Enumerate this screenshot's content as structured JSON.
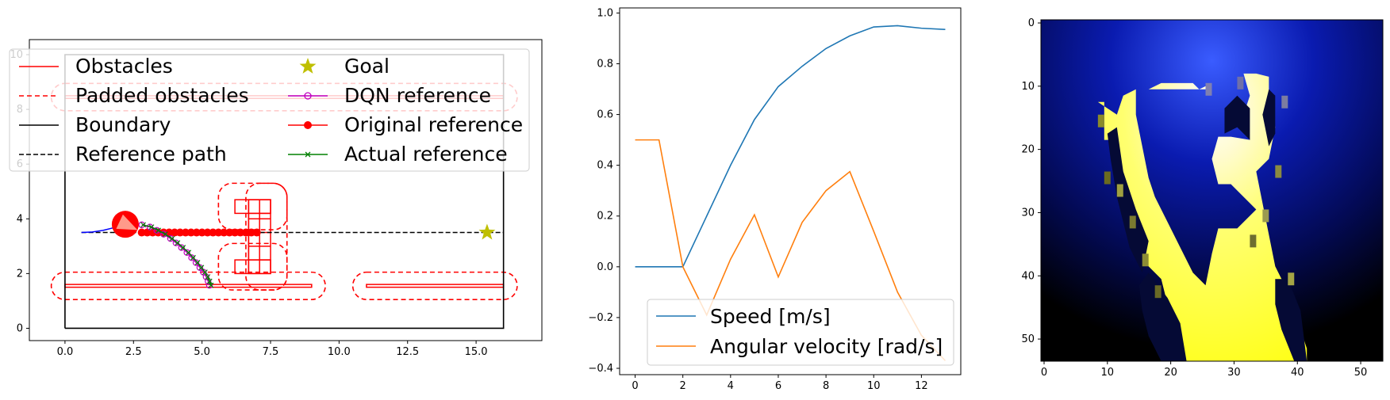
{
  "chart_data": [
    {
      "type": "scatter",
      "title": "",
      "xlabel": "",
      "ylabel": "",
      "xlim": [
        -1.3,
        17.4
      ],
      "ylim": [
        -0.45,
        10.55
      ],
      "xticks": [
        0.0,
        2.5,
        5.0,
        7.5,
        10.0,
        12.5,
        15.0
      ],
      "xtick_labels": [
        "0.0",
        "2.5",
        "5.0",
        "7.5",
        "10.0",
        "12.5",
        "15.0"
      ],
      "yticks": [
        0,
        2,
        4,
        6,
        8,
        10
      ],
      "ytick_labels": [
        "0",
        "2",
        "4",
        "6",
        "8",
        "10"
      ],
      "legend": {
        "placement": "top-left",
        "entries": [
          "Obstacles",
          "Padded obstacles",
          "Boundary",
          "Reference path",
          "Goal",
          "DQN reference",
          "Original reference",
          "Actual reference"
        ]
      },
      "boundary": [
        [
          0,
          0
        ],
        [
          16,
          0
        ],
        [
          16,
          10
        ],
        [
          0,
          10
        ],
        [
          0,
          0
        ]
      ],
      "obstacles": [
        [
          [
            0,
            1.5
          ],
          [
            9,
            1.5
          ],
          [
            9,
            1.6
          ],
          [
            0,
            1.6
          ]
        ],
        [
          [
            11,
            1.5
          ],
          [
            16,
            1.5
          ],
          [
            16,
            1.6
          ],
          [
            11,
            1.6
          ]
        ],
        [
          [
            0,
            8.4
          ],
          [
            16,
            8.4
          ],
          [
            16,
            8.5
          ],
          [
            0,
            8.5
          ]
        ],
        [
          [
            6.2,
            4.2
          ],
          [
            7.5,
            4.2
          ],
          [
            7.5,
            4.7
          ],
          [
            6.2,
            4.7
          ]
        ],
        [
          [
            6.2,
            2.0
          ],
          [
            7.5,
            2.0
          ],
          [
            7.5,
            2.5
          ],
          [
            6.2,
            2.5
          ]
        ],
        [
          [
            6.7,
            2.0
          ],
          [
            7.5,
            2.0
          ],
          [
            7.5,
            4.7
          ],
          [
            6.7,
            4.7
          ]
        ]
      ],
      "padded_obstacles": [
        {
          "x": [
            -0.5,
            9.5
          ],
          "y": [
            1.05,
            2.05
          ],
          "r": 0.5
        },
        {
          "x": [
            10.5,
            16.5
          ],
          "y": [
            1.05,
            2.05
          ],
          "r": 0.5
        },
        {
          "x": [
            -0.5,
            16.5
          ],
          "y": [
            7.95,
            8.95
          ],
          "r": 0.5
        },
        {
          "x": [
            5.6,
            8.1
          ],
          "y": [
            3.6,
            5.3
          ],
          "r": 0.5
        },
        {
          "x": [
            5.6,
            8.1
          ],
          "y": [
            1.4,
            3.1
          ],
          "r": 0.5
        },
        {
          "x": [
            6.6,
            8.1
          ],
          "y": [
            1.4,
            5.3
          ],
          "r": 0.5
        }
      ],
      "reference_path": {
        "x": [
          0.6,
          16.0
        ],
        "y": [
          3.5,
          3.5
        ]
      },
      "goal": {
        "x": 15.4,
        "y": 3.5
      },
      "robot": {
        "x": 2.2,
        "y": 3.8,
        "heading_deg": -25
      },
      "past_trajectory": {
        "x": [
          0.6,
          1.0,
          1.4,
          1.8,
          2.2
        ],
        "y": [
          3.5,
          3.52,
          3.58,
          3.68,
          3.8
        ]
      },
      "original_reference": {
        "x": [
          2.8,
          3.0,
          3.2,
          3.4,
          3.6,
          3.8,
          4.0,
          4.2,
          4.4,
          4.6,
          4.8,
          5.0,
          5.2,
          5.4,
          5.6,
          5.8,
          6.0,
          6.2,
          6.4,
          6.6,
          6.8,
          7.0
        ],
        "y": [
          3.5,
          3.5,
          3.5,
          3.5,
          3.5,
          3.5,
          3.5,
          3.5,
          3.5,
          3.5,
          3.5,
          3.5,
          3.5,
          3.5,
          3.5,
          3.5,
          3.5,
          3.5,
          3.5,
          3.5,
          3.5,
          3.5
        ]
      },
      "dqn_reference": {
        "x": [
          2.8,
          3.1,
          3.35,
          3.6,
          3.85,
          4.05,
          4.25,
          4.45,
          4.62,
          4.78,
          4.92,
          5.05,
          5.15,
          5.22,
          5.27
        ],
        "y": [
          3.78,
          3.7,
          3.58,
          3.44,
          3.28,
          3.12,
          2.95,
          2.77,
          2.58,
          2.4,
          2.22,
          2.05,
          1.88,
          1.72,
          1.57
        ]
      },
      "actual_reference": {
        "x": [
          2.8,
          3.1,
          3.35,
          3.6,
          3.85,
          4.05,
          4.25,
          4.45,
          4.62,
          4.78,
          4.92,
          5.05,
          5.15,
          5.22,
          5.27
        ],
        "y": [
          3.78,
          3.7,
          3.58,
          3.44,
          3.28,
          3.12,
          2.95,
          2.77,
          2.58,
          2.4,
          2.22,
          2.05,
          1.88,
          1.72,
          1.57
        ]
      },
      "colors": {
        "obstacles": "#ff0000",
        "padded": "#ff0000",
        "boundary": "#000000",
        "reference_path": "#000000",
        "goal": "#bfbf00",
        "dqn": "#bf00bf",
        "original": "#ff0000",
        "actual": "#008000",
        "past": "#0000ff",
        "robot": "#ff0000",
        "robot_arrow": "#ff9a8a"
      }
    },
    {
      "type": "line",
      "title": "",
      "xlabel": "",
      "ylabel": "",
      "x": [
        0,
        1,
        2,
        3,
        4,
        5,
        6,
        7,
        8,
        9,
        10,
        11,
        12,
        13
      ],
      "xlim": [
        -0.65,
        13.65
      ],
      "ylim": [
        -0.425,
        1.02
      ],
      "xticks": [
        0,
        2,
        4,
        6,
        8,
        10,
        12
      ],
      "xtick_labels": [
        "0",
        "2",
        "4",
        "6",
        "8",
        "10",
        "12"
      ],
      "yticks": [
        -0.4,
        -0.2,
        0.0,
        0.2,
        0.4,
        0.6,
        0.8,
        1.0
      ],
      "ytick_labels": [
        "−0.4",
        "−0.2",
        "0.0",
        "0.2",
        "0.4",
        "0.6",
        "0.8",
        "1.0"
      ],
      "legend": {
        "placement": "bottom-right"
      },
      "series": [
        {
          "name": "Speed [m/s]",
          "color": "#1f77b4",
          "values": [
            0.0,
            0.0,
            0.0,
            0.2,
            0.4,
            0.58,
            0.71,
            0.79,
            0.86,
            0.91,
            0.945,
            0.95,
            0.94,
            0.935
          ]
        },
        {
          "name": "Angular velocity [rad/s]",
          "color": "#ff7f0e",
          "values": [
            0.5,
            0.5,
            0.0,
            -0.19,
            0.03,
            0.205,
            -0.04,
            0.175,
            0.3,
            0.375,
            0.14,
            -0.1,
            -0.27,
            -0.37
          ]
        }
      ]
    },
    {
      "type": "heatmap",
      "title": "",
      "xlabel": "",
      "ylabel": "",
      "shape": [
        54,
        54
      ],
      "colormap": "gnuplot2-like (black → blue → yellow → white)",
      "xticks": [
        0,
        10,
        20,
        30,
        40,
        50
      ],
      "xtick_labels": [
        "0",
        "10",
        "20",
        "30",
        "40",
        "50"
      ],
      "yticks": [
        0,
        10,
        20,
        30,
        40,
        50
      ],
      "ytick_labels": [
        "0",
        "10",
        "20",
        "30",
        "40",
        "50"
      ]
    }
  ]
}
